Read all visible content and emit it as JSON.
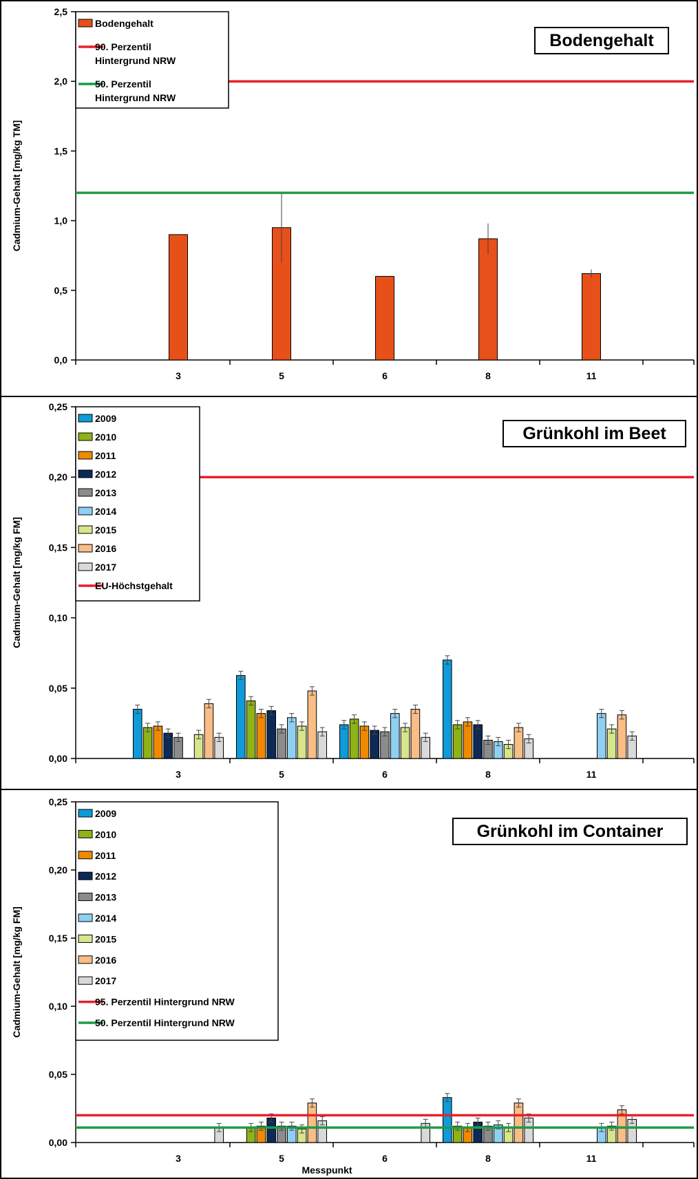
{
  "figure": {
    "xlabel": "Messpunkt",
    "categories": [
      "3",
      "5",
      "6",
      "8",
      "11"
    ],
    "colors": {
      "2009": "#0f9ad8",
      "2010": "#8db316",
      "2011": "#ef8a00",
      "2012": "#0c2a55",
      "2013": "#8c8c8c",
      "2014": "#8fd0f2",
      "2015": "#d7e58c",
      "2016": "#f9bd86",
      "2017": "#d9d9d9",
      "soil": "#e8501a",
      "red_line": "#e8202a",
      "green_line": "#1f9b47"
    }
  },
  "chart_data": [
    {
      "type": "bar",
      "title": "Bodengehalt",
      "ylabel": "Cadmium-Gehalt [mg/kg TM]",
      "ylim": [
        0,
        2.5
      ],
      "yticks": [
        "0,0",
        "0,5",
        "1,0",
        "1,5",
        "2,0",
        "2,5"
      ],
      "categories": [
        "3",
        "5",
        "6",
        "8",
        "11"
      ],
      "series": [
        {
          "name": "Bodengehalt",
          "color_key": "soil",
          "values": [
            0.9,
            0.95,
            0.6,
            0.87,
            0.62
          ],
          "errors": [
            0,
            0.25,
            0,
            0.11,
            0.03
          ]
        }
      ],
      "lines": [
        {
          "name": "90. Perzentil Hintergrund NRW",
          "label_lines": [
            "90. Perzentil",
            "Hintergrund NRW"
          ],
          "value": 2.0,
          "color_key": "red_line"
        },
        {
          "name": "50. Perzentil Hintergrund NRW",
          "label_lines": [
            "50. Perzentil",
            "Hintergrund NRW"
          ],
          "value": 1.2,
          "color_key": "green_line"
        }
      ],
      "legend": "top-left"
    },
    {
      "type": "bar",
      "title": "Grünkohl im Beet",
      "ylabel": "Cadmium-Gehalt [mg/kg FM]",
      "ylim": [
        0,
        0.25
      ],
      "yticks": [
        "0,00",
        "0,05",
        "0,10",
        "0,15",
        "0,20",
        "0,25"
      ],
      "categories": [
        "3",
        "5",
        "6",
        "8",
        "11"
      ],
      "series": [
        {
          "name": "2009",
          "values": [
            0.035,
            0.059,
            0.024,
            0.07,
            null
          ],
          "errors": [
            0.003,
            0.003,
            0.003,
            0.003,
            0
          ]
        },
        {
          "name": "2010",
          "values": [
            0.022,
            0.041,
            0.028,
            0.024,
            null
          ],
          "errors": [
            0.003,
            0.003,
            0.003,
            0.003,
            0
          ]
        },
        {
          "name": "2011",
          "values": [
            0.023,
            0.032,
            0.023,
            0.026,
            null
          ],
          "errors": [
            0.003,
            0.003,
            0.003,
            0.003,
            0
          ]
        },
        {
          "name": "2012",
          "values": [
            0.018,
            0.034,
            0.02,
            0.024,
            null
          ],
          "errors": [
            0.003,
            0.003,
            0.003,
            0.003,
            0
          ]
        },
        {
          "name": "2013",
          "values": [
            0.015,
            0.021,
            0.019,
            0.013,
            null
          ],
          "errors": [
            0.003,
            0.003,
            0.003,
            0.003,
            0
          ]
        },
        {
          "name": "2014",
          "values": [
            null,
            0.029,
            0.032,
            0.012,
            0.032
          ],
          "errors": [
            0,
            0.003,
            0.003,
            0.003,
            0.003
          ]
        },
        {
          "name": "2015",
          "values": [
            0.017,
            0.023,
            0.022,
            0.01,
            0.021
          ],
          "errors": [
            0.003,
            0.003,
            0.003,
            0.003,
            0.003
          ]
        },
        {
          "name": "2016",
          "values": [
            0.039,
            0.048,
            0.035,
            0.022,
            0.031
          ],
          "errors": [
            0.003,
            0.003,
            0.003,
            0.003,
            0.003
          ]
        },
        {
          "name": "2017",
          "values": [
            0.015,
            0.019,
            0.015,
            0.014,
            0.016
          ],
          "errors": [
            0.003,
            0.003,
            0.003,
            0.003,
            0.003
          ]
        }
      ],
      "lines": [
        {
          "name": "EU-Höchstgehalt",
          "label_lines": [
            "EU-Höchstgehalt"
          ],
          "value": 0.2,
          "color_key": "red_line"
        }
      ],
      "legend": "top-left"
    },
    {
      "type": "bar",
      "title": "Grünkohl im Container",
      "ylabel": "Cadmium-Gehalt [mg/kg FM]",
      "xlabel": "Messpunkt",
      "ylim": [
        0,
        0.25
      ],
      "yticks": [
        "0,00",
        "0,05",
        "0,10",
        "0,15",
        "0,20",
        "0,25"
      ],
      "categories": [
        "3",
        "5",
        "6",
        "8",
        "11"
      ],
      "series": [
        {
          "name": "2009",
          "values": [
            null,
            null,
            null,
            0.033,
            null
          ],
          "errors": [
            0,
            0,
            0,
            0.003,
            0
          ]
        },
        {
          "name": "2010",
          "values": [
            null,
            0.011,
            null,
            0.012,
            null
          ],
          "errors": [
            0,
            0.003,
            0,
            0.003,
            0
          ]
        },
        {
          "name": "2011",
          "values": [
            null,
            0.012,
            null,
            0.011,
            null
          ],
          "errors": [
            0,
            0.003,
            0,
            0.003,
            0
          ]
        },
        {
          "name": "2012",
          "values": [
            null,
            0.018,
            null,
            0.015,
            null
          ],
          "errors": [
            0,
            0.003,
            0,
            0.003,
            0
          ]
        },
        {
          "name": "2013",
          "values": [
            null,
            0.012,
            null,
            0.012,
            null
          ],
          "errors": [
            0,
            0.003,
            0,
            0.003,
            0
          ]
        },
        {
          "name": "2014",
          "values": [
            null,
            0.012,
            null,
            0.013,
            0.011
          ],
          "errors": [
            0,
            0.003,
            0,
            0.003,
            0.003
          ]
        },
        {
          "name": "2015",
          "values": [
            null,
            0.01,
            null,
            0.011,
            0.012
          ],
          "errors": [
            0,
            0.003,
            0,
            0.003,
            0.003
          ]
        },
        {
          "name": "2016",
          "values": [
            null,
            0.029,
            null,
            0.029,
            0.024
          ],
          "errors": [
            0,
            0.003,
            0,
            0.003,
            0.003
          ]
        },
        {
          "name": "2017",
          "values": [
            0.011,
            0.016,
            0.014,
            0.018,
            0.017
          ],
          "errors": [
            0.003,
            0.003,
            0.003,
            0.003,
            0.003
          ]
        }
      ],
      "lines": [
        {
          "name": "95. Perzentil Hintergrund NRW",
          "label_lines": [
            "95. Perzentil Hintergrund NRW"
          ],
          "value": 0.02,
          "color_key": "red_line"
        },
        {
          "name": "50. Perzentil Hintergrund NRW",
          "label_lines": [
            "50. Perzentil Hintergrund NRW"
          ],
          "value": 0.011,
          "color_key": "green_line"
        }
      ],
      "legend": "top-left"
    }
  ]
}
